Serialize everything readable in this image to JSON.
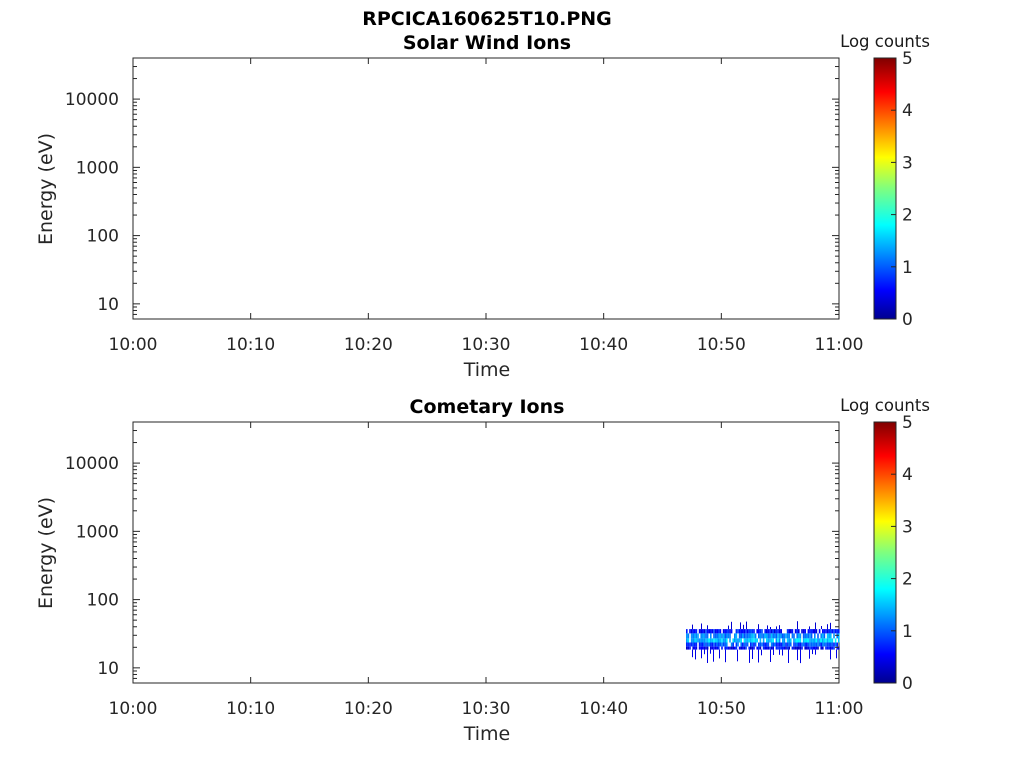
{
  "figure_title": "RPCICA160625T10.PNG",
  "chart_data": [
    {
      "type": "heatmap",
      "title": "Solar Wind Ions",
      "xlabel": "Time",
      "ylabel": "Energy (eV)",
      "x_ticks": [
        "10:00",
        "10:10",
        "10:20",
        "10:30",
        "10:40",
        "10:50",
        "11:00"
      ],
      "y_ticks": [
        "10",
        "100",
        "1000",
        "10000"
      ],
      "yscale": "log",
      "ylim": [
        6,
        40000
      ],
      "xlim_minutes": [
        0,
        60
      ],
      "colorbar": {
        "label": "Log counts",
        "ticks": [
          "0",
          "1",
          "2",
          "3",
          "4",
          "5"
        ],
        "range": [
          0,
          5
        ],
        "colormap": "jet"
      },
      "data": []
    },
    {
      "type": "heatmap",
      "title": "Cometary Ions",
      "xlabel": "Time",
      "ylabel": "Energy (eV)",
      "x_ticks": [
        "10:00",
        "10:10",
        "10:20",
        "10:30",
        "10:40",
        "10:50",
        "11:00"
      ],
      "y_ticks": [
        "10",
        "100",
        "1000",
        "10000"
      ],
      "yscale": "log",
      "ylim": [
        6,
        40000
      ],
      "xlim_minutes": [
        0,
        60
      ],
      "colorbar": {
        "label": "Log counts",
        "ticks": [
          "0",
          "1",
          "2",
          "3",
          "4",
          "5"
        ],
        "range": [
          0,
          5
        ],
        "colormap": "jet"
      },
      "data": {
        "time_range": [
          "10:47",
          "11:00"
        ],
        "bands": [
          {
            "energy_eV": [
              32,
              37
            ],
            "log_counts": 0.7
          },
          {
            "energy_eV": [
              27,
              32
            ],
            "log_counts": 1.3
          },
          {
            "energy_eV": [
              23.5,
              27
            ],
            "log_counts": 1.6
          },
          {
            "energy_eV": [
              20.5,
              23.5
            ],
            "log_counts": 1.0
          },
          {
            "energy_eV": [
              18.5,
              20.5
            ],
            "log_counts": 0.6
          }
        ]
      }
    }
  ]
}
